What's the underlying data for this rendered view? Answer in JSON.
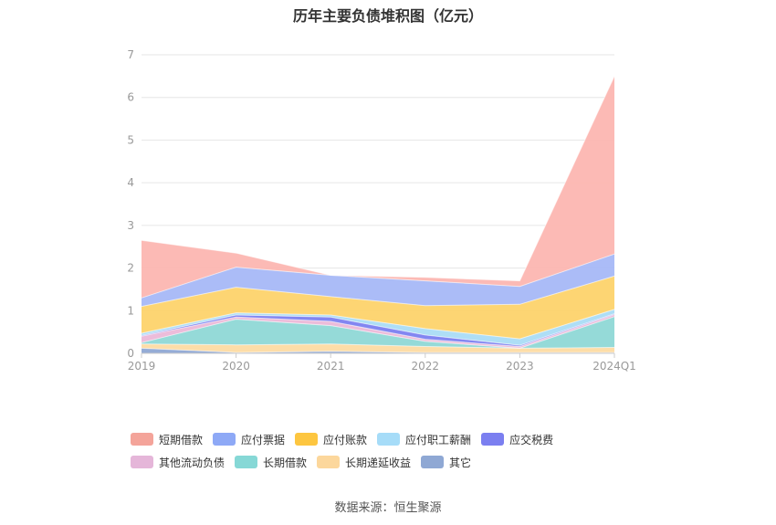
{
  "chart_data": {
    "type": "area",
    "stacked": true,
    "title": "历年主要负债堆积图（亿元）",
    "categories": [
      "2019",
      "2020",
      "2021",
      "2022",
      "2023",
      "2024Q1"
    ],
    "ylim": [
      0,
      7
    ],
    "yticks": [
      "0",
      "1",
      "2",
      "3",
      "4",
      "5",
      "6",
      "7"
    ],
    "grid": true,
    "legend_position": "bottom",
    "series": [
      {
        "name": "其它",
        "color": "#8fa8d4",
        "values": [
          0.12,
          0.02,
          0.05,
          0.02,
          0.02,
          0.02
        ]
      },
      {
        "name": "长期递延收益",
        "color": "#fddba3",
        "values": [
          0.1,
          0.18,
          0.17,
          0.14,
          0.1,
          0.12
        ]
      },
      {
        "name": "长期借款",
        "color": "#8fd8d6",
        "values": [
          0.03,
          0.6,
          0.43,
          0.12,
          0.0,
          0.72
        ]
      },
      {
        "name": "其他流动负债",
        "color": "#ebb8d8",
        "values": [
          0.15,
          0.05,
          0.1,
          0.05,
          0.04,
          0.05
        ]
      },
      {
        "name": "应交税费",
        "color": "#7b7ff0",
        "values": [
          0.02,
          0.05,
          0.1,
          0.1,
          0.03,
          0.02
        ]
      },
      {
        "name": "应付职工薪酬",
        "color": "#aadcf5",
        "values": [
          0.05,
          0.05,
          0.05,
          0.15,
          0.15,
          0.1
        ]
      },
      {
        "name": "应付账款",
        "color": "#fdd36b",
        "values": [
          0.63,
          0.6,
          0.43,
          0.54,
          0.81,
          0.78
        ]
      },
      {
        "name": "应付票据",
        "color": "#a6b8f7",
        "values": [
          0.2,
          0.47,
          0.5,
          0.58,
          0.42,
          0.52
        ]
      },
      {
        "name": "短期借款",
        "color": "#fcb6b1",
        "values": [
          1.35,
          0.33,
          0.0,
          0.08,
          0.13,
          4.17
        ]
      }
    ]
  },
  "legend": [
    {
      "label": "短期借款",
      "color": "#f4a49a"
    },
    {
      "label": "应付票据",
      "color": "#8ea9f6"
    },
    {
      "label": "应付账款",
      "color": "#fdc640"
    },
    {
      "label": "应付职工薪酬",
      "color": "#a6dcf8"
    },
    {
      "label": "应交税费",
      "color": "#7b7ff0"
    },
    {
      "label": "其他流动负债",
      "color": "#e5b6d9"
    },
    {
      "label": "长期借款",
      "color": "#86d8d6"
    },
    {
      "label": "长期递延收益",
      "color": "#fcd79c"
    },
    {
      "label": "其它",
      "color": "#8fa8d4"
    }
  ],
  "source": "数据来源：恒生聚源"
}
